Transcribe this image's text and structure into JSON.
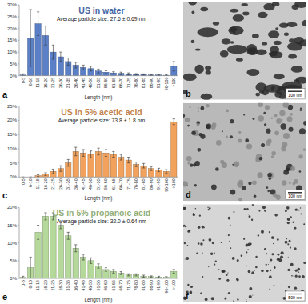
{
  "chart_data": [
    {
      "type": "bar",
      "panel": "a",
      "title": "US in water",
      "subtitle": "Average particle size: 27.6 ± 0.69 nm",
      "x_label": "Length (nm)",
      "categories": [
        "0-5",
        "6-10",
        "11-15",
        "16-20",
        "21-25",
        "26-30",
        "31-35",
        "36-40",
        "41-45",
        "46-50",
        "51-55",
        "56-60",
        "61-65",
        "66-70",
        "71-75",
        "76-80",
        "81-85",
        "86-90",
        "91-95",
        "96-100",
        ">100"
      ],
      "values": [
        0.3,
        16,
        22,
        17,
        10,
        8,
        6,
        4.5,
        3.5,
        3,
        2,
        1.5,
        1.2,
        1,
        0.8,
        0.6,
        0.5,
        0.3,
        0.3,
        0.2,
        4
      ],
      "errors": [
        0.5,
        12,
        5,
        4,
        3,
        2,
        1.5,
        1.2,
        1,
        1,
        0.8,
        0.6,
        0.5,
        0.5,
        0.4,
        0.3,
        0.3,
        0.2,
        0.2,
        0.2,
        2
      ],
      "color": "#5b80c8",
      "ylim": [
        0,
        30
      ],
      "yticks": [
        {
          "value": 0,
          "label": "0%"
        },
        {
          "value": 5,
          "label": "5%"
        },
        {
          "value": 10,
          "label": "10%"
        },
        {
          "value": 15,
          "label": "15%"
        },
        {
          "value": 20,
          "label": "20%"
        },
        {
          "value": 25,
          "label": "25%"
        },
        {
          "value": 30,
          "label": "30%"
        }
      ],
      "grid": false
    },
    {
      "type": "bar",
      "panel": "c",
      "title": "US in 5% acetic acid",
      "subtitle": "Average particle size: 73.8 ± 1.8 nm",
      "x_label": "Length (nm)",
      "categories": [
        "0-5",
        "6-10",
        "11-15",
        "16-20",
        "21-25",
        "26-30",
        "31-35",
        "36-40",
        "41-45",
        "46-50",
        "51-55",
        "56-60",
        "61-65",
        "66-70",
        "71-75",
        "76-80",
        "81-85",
        "86-90",
        "91-95",
        "96-100",
        ">100"
      ],
      "values": [
        0,
        0,
        0.5,
        1,
        2,
        3,
        5,
        9,
        8.5,
        8,
        9,
        8.5,
        8,
        7,
        6,
        4.5,
        4,
        3,
        2.5,
        2,
        19.5
      ],
      "errors": [
        0,
        0,
        0.3,
        0.5,
        0.8,
        1,
        1.2,
        1.5,
        1.2,
        1.2,
        1.2,
        1.2,
        1,
        1,
        1,
        0.8,
        0.8,
        0.7,
        0.6,
        0.6,
        1
      ],
      "color": "#f2a25c",
      "ylim": [
        0,
        25
      ],
      "yticks": [
        {
          "value": 0,
          "label": "0%"
        },
        {
          "value": 5,
          "label": "5%"
        },
        {
          "value": 10,
          "label": "10%"
        },
        {
          "value": 15,
          "label": "15%"
        },
        {
          "value": 20,
          "label": "20%"
        },
        {
          "value": 25,
          "label": "25%"
        }
      ],
      "grid": false
    },
    {
      "type": "bar",
      "panel": "e",
      "title": "US in 5% propanoic acid",
      "subtitle": "Average particle size: 32.0 ± 0.64 nm",
      "x_label": "Length (nm)",
      "categories": [
        "0-5",
        "6-10",
        "11-15",
        "16-20",
        "21-25",
        "26-30",
        "31-35",
        "36-40",
        "41-45",
        "46-50",
        "51-55",
        "56-60",
        "61-65",
        "66-70",
        "71-75",
        "76-80",
        "81-85",
        "86-90",
        "91-95",
        "96-100",
        ">100"
      ],
      "values": [
        0.3,
        3,
        13,
        17.5,
        17.5,
        15,
        12,
        8.5,
        6,
        5,
        3.5,
        2.5,
        2,
        1.5,
        1,
        1,
        0.6,
        0.5,
        0.4,
        0.3,
        2
      ],
      "errors": [
        0.3,
        3,
        2,
        1,
        1,
        1,
        1,
        1,
        0.8,
        0.8,
        0.6,
        0.5,
        0.5,
        0.4,
        0.3,
        0.3,
        0.3,
        0.2,
        0.2,
        0.2,
        0.5
      ],
      "color": "#b5d99a",
      "ylim": [
        0,
        20
      ],
      "yticks": [
        {
          "value": 0,
          "label": "0%"
        },
        {
          "value": 5,
          "label": "5%"
        },
        {
          "value": 10,
          "label": "10%"
        },
        {
          "value": 15,
          "label": "15%"
        },
        {
          "value": 20,
          "label": "20%"
        }
      ],
      "grid": false
    }
  ],
  "images": [
    {
      "panel": "b",
      "scale_bar": "100 nm"
    },
    {
      "panel": "d",
      "scale_bar": "100 nm"
    },
    {
      "panel": "f",
      "scale_bar": "500 nm"
    }
  ]
}
